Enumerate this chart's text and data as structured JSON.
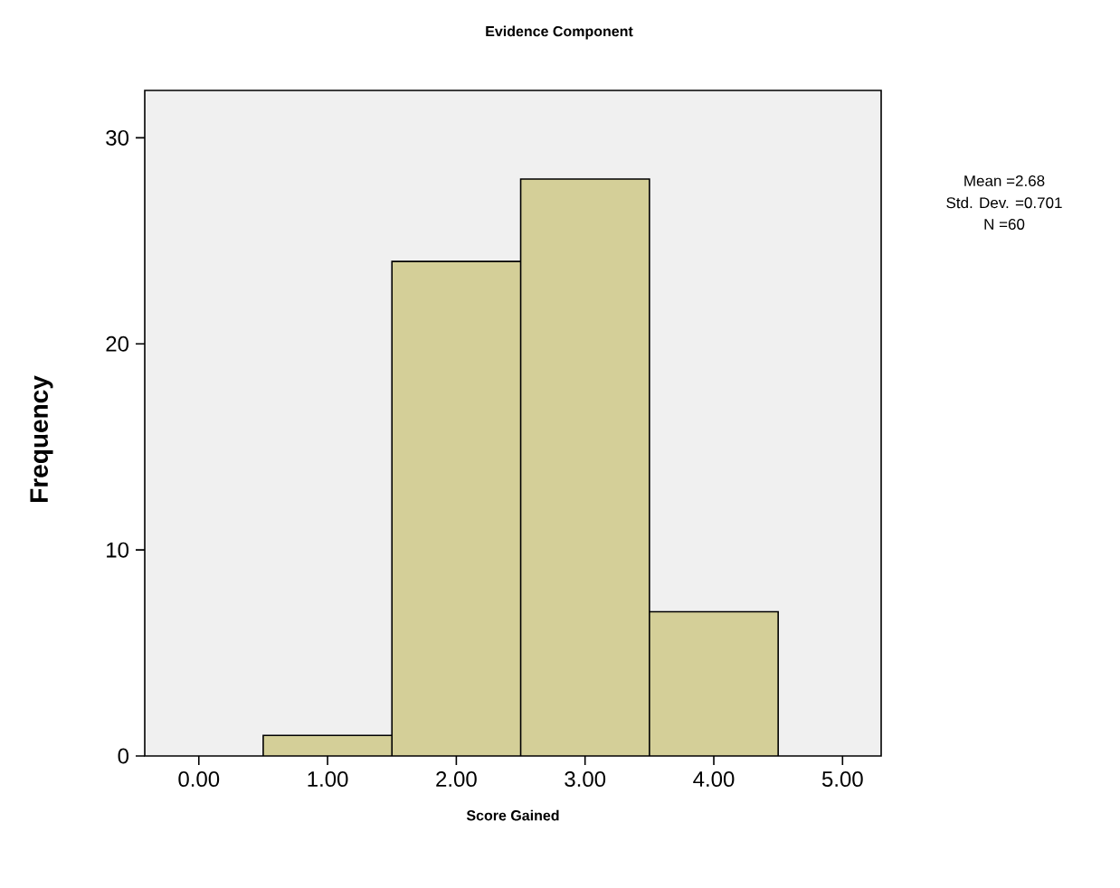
{
  "chart_data": {
    "type": "histogram",
    "title": "Evidence Component",
    "xlabel": "Score Gained",
    "ylabel": "Frequency",
    "bins": [
      0.5,
      1.5,
      2.5,
      3.5,
      4.5
    ],
    "values": [
      1,
      24,
      28,
      7
    ],
    "color": "#d4cf98",
    "xlim": [
      -0.42,
      5.3
    ],
    "ylim": [
      0,
      32.3
    ],
    "xticks": [
      {
        "value": 0,
        "label": "0.00"
      },
      {
        "value": 1,
        "label": "1.00"
      },
      {
        "value": 2,
        "label": "2.00"
      },
      {
        "value": 3,
        "label": "3.00"
      },
      {
        "value": 4,
        "label": "4.00"
      },
      {
        "value": 5,
        "label": "5.00"
      }
    ],
    "yticks": [
      0,
      10,
      20,
      30
    ],
    "annotations": [
      "Mean =2.68",
      "Std. Dev. =0.701",
      "N =60"
    ],
    "grid": false
  }
}
